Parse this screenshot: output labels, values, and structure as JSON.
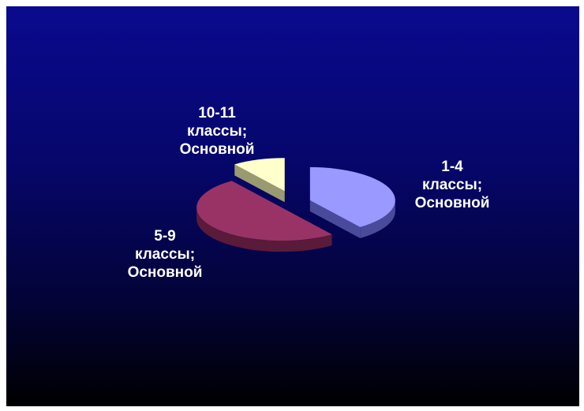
{
  "chart_data": {
    "type": "pie",
    "style": "3d-exploded",
    "title": "",
    "categories": [
      "1-4 классы",
      "5-9 классы",
      "10-11 классы"
    ],
    "series": [
      {
        "name": "Основной",
        "values": [
          40,
          50,
          10
        ]
      }
    ],
    "data_labels": [
      {
        "lines": [
          "1-4",
          "классы;",
          "Основной"
        ]
      },
      {
        "lines": [
          "5-9",
          "классы;",
          "Основной"
        ]
      },
      {
        "lines": [
          "10-11",
          "классы;",
          "Основной"
        ]
      }
    ],
    "colors": [
      "#9999ff",
      "#993366",
      "#ffffcc"
    ],
    "side_colors": [
      "#4a4a9a",
      "#5a1a3a",
      "#9a9a70"
    ],
    "background_gradient": [
      "#0a0a8f",
      "#000000"
    ],
    "legend": "none"
  }
}
